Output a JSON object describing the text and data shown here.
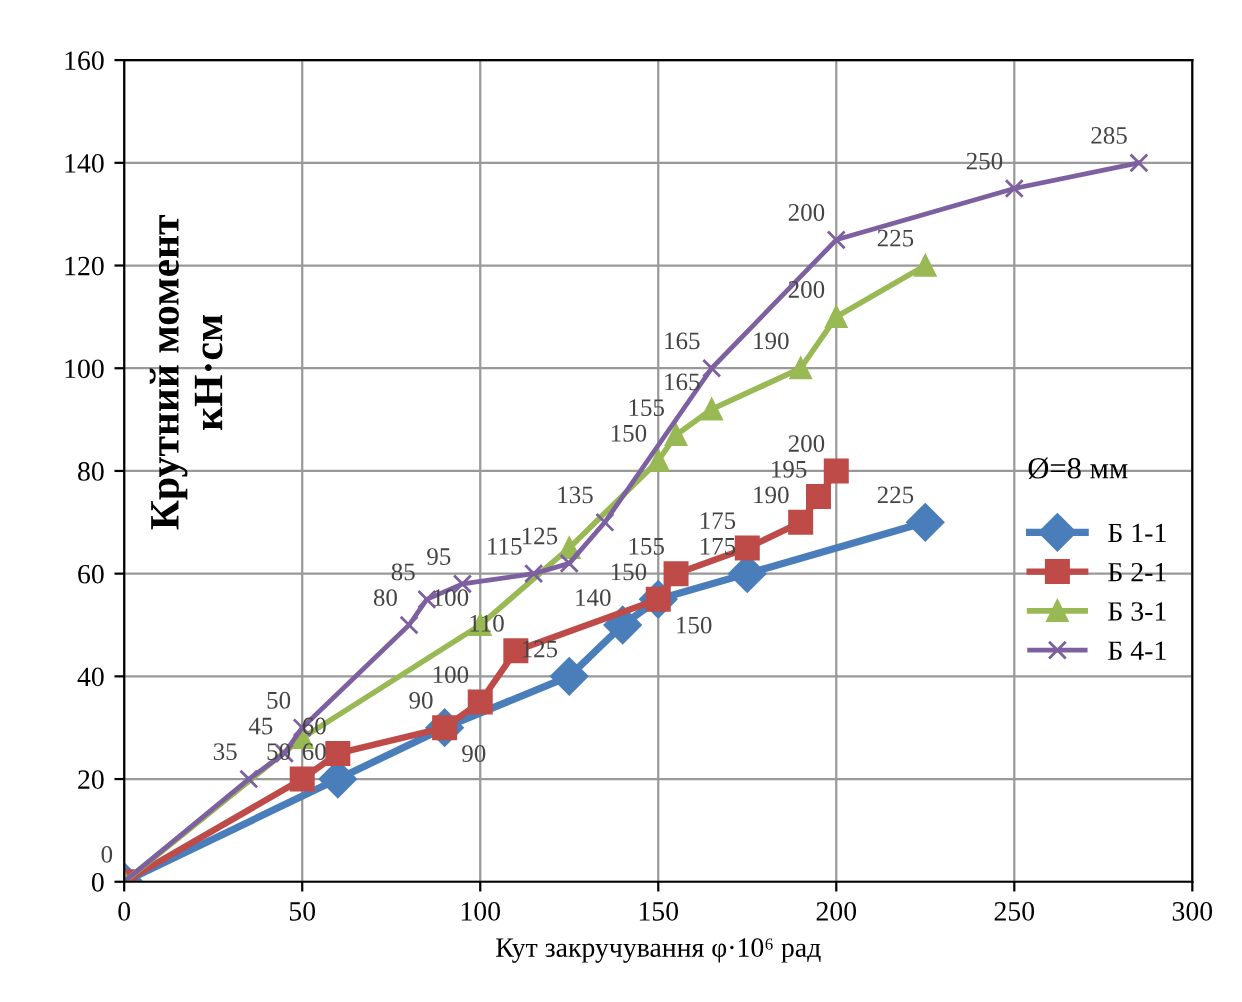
{
  "chart_data": {
    "type": "line",
    "xlabel": "Кут закручування φ·10⁶ рад",
    "ylabel": "Крутний момент\nкН·см",
    "xlim": [
      0,
      300
    ],
    "ylim": [
      0,
      160
    ],
    "xticks": [
      0,
      50,
      100,
      150,
      200,
      250,
      300
    ],
    "yticks": [
      0,
      20,
      40,
      60,
      80,
      100,
      120,
      140,
      160
    ],
    "grid": true,
    "legend": "right",
    "series": [
      {
        "name": "Б 1-1",
        "color": "#4a7ebb",
        "marker": "diamond",
        "x": [
          0,
          60,
          90,
          125,
          140,
          150,
          175,
          225
        ],
        "values": [
          0,
          20,
          30,
          40,
          50,
          55,
          60,
          70
        ]
      },
      {
        "name": "Б 2-1",
        "color": "#be4b48",
        "marker": "square",
        "x": [
          0,
          50,
          60,
          90,
          100,
          110,
          150,
          155,
          175,
          190,
          195,
          200
        ],
        "values": [
          0,
          20,
          25,
          30,
          35,
          45,
          55,
          60,
          65,
          70,
          75,
          80
        ]
      },
      {
        "name": "Б 3-1",
        "color": "#98b954",
        "marker": "triangle",
        "x": [
          0,
          50,
          100,
          125,
          150,
          155,
          165,
          190,
          200,
          225
        ],
        "values": [
          0,
          28,
          50,
          65,
          82,
          87,
          92,
          100,
          110,
          120
        ]
      },
      {
        "name": "Б 4-1",
        "color": "#7d60a0",
        "marker": "cross",
        "x": [
          0,
          35,
          45,
          50,
          80,
          85,
          95,
          115,
          125,
          135,
          165,
          200,
          250,
          285
        ],
        "values": [
          0,
          20,
          25,
          30,
          50,
          55,
          58,
          60,
          62,
          70,
          100,
          125,
          135,
          140
        ]
      }
    ],
    "annotations": [
      "Ø=8 мм",
      {
        "text": "0",
        "x": 0,
        "y": 0
      },
      {
        "text": "60",
        "x": 60,
        "y": 20
      },
      {
        "text": "90",
        "x": 90,
        "y": 30
      },
      {
        "text": "125",
        "x": 125,
        "y": 40
      },
      {
        "text": "140",
        "x": 140,
        "y": 50
      },
      {
        "text": "150",
        "x": 150,
        "y": 55
      },
      {
        "text": "175",
        "x": 175,
        "y": 60
      },
      {
        "text": "225",
        "x": 225,
        "y": 70
      },
      {
        "text": "50",
        "x": 50,
        "y": 20
      },
      {
        "text": "100",
        "x": 100,
        "y": 35
      },
      {
        "text": "110",
        "x": 110,
        "y": 45
      },
      {
        "text": "155",
        "x": 155,
        "y": 60
      },
      {
        "text": "190",
        "x": 190,
        "y": 70
      },
      {
        "text": "195",
        "x": 195,
        "y": 75
      },
      {
        "text": "200",
        "x": 200,
        "y": 80
      },
      {
        "text": "100",
        "x": 100,
        "y": 50
      },
      {
        "text": "150",
        "x": 150,
        "y": 82
      },
      {
        "text": "165",
        "x": 165,
        "y": 92
      },
      {
        "text": "200",
        "x": 200,
        "y": 110
      },
      {
        "text": "225",
        "x": 225,
        "y": 120
      },
      {
        "text": "35",
        "x": 35,
        "y": 20
      },
      {
        "text": "45",
        "x": 45,
        "y": 25
      },
      {
        "text": "50",
        "x": 50,
        "y": 30
      },
      {
        "text": "80",
        "x": 80,
        "y": 50
      },
      {
        "text": "85",
        "x": 85,
        "y": 55
      },
      {
        "text": "95",
        "x": 95,
        "y": 58
      },
      {
        "text": "115",
        "x": 115,
        "y": 60
      },
      {
        "text": "125",
        "x": 125,
        "y": 62
      },
      {
        "text": "135",
        "x": 135,
        "y": 70
      },
      {
        "text": "165",
        "x": 165,
        "y": 100
      },
      {
        "text": "200",
        "x": 200,
        "y": 125
      },
      {
        "text": "250",
        "x": 250,
        "y": 135
      },
      {
        "text": "285",
        "x": 285,
        "y": 140
      },
      {
        "text": "60",
        "x": 60,
        "y": 25
      },
      {
        "text": "90",
        "x": 90,
        "y": 30
      },
      {
        "text": "175",
        "x": 175,
        "y": 65
      },
      {
        "text": "150",
        "x": 150,
        "y": 55
      },
      {
        "text": "155",
        "x": 155,
        "y": 87
      },
      {
        "text": "190",
        "x": 190,
        "y": 100
      }
    ]
  }
}
